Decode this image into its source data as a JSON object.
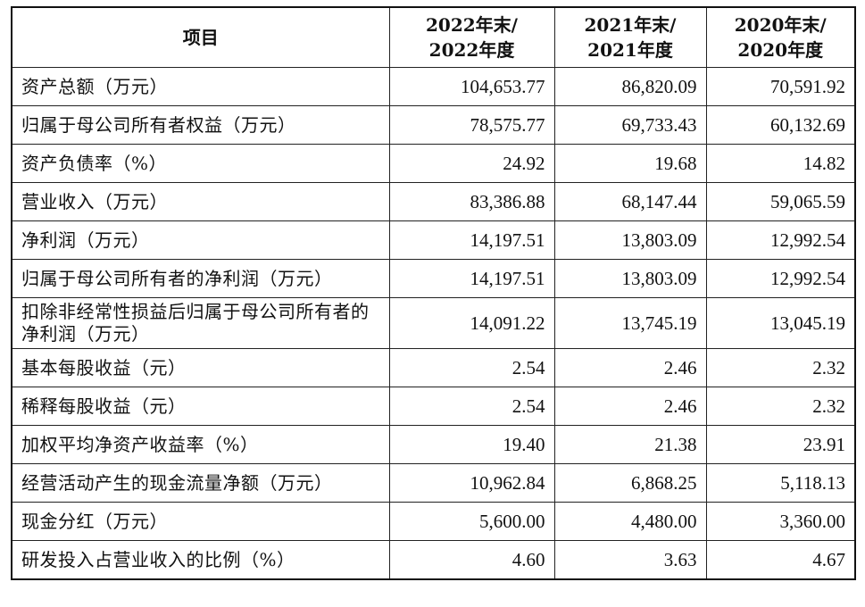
{
  "header": {
    "item": "项目",
    "col2022_line1": "2022年末/",
    "col2022_line2": "2022年度",
    "col2021_line1": "2021年末/",
    "col2021_line2": "2021年度",
    "col2020_line1": "2020年末/",
    "col2020_line2": "2020年度"
  },
  "rows": [
    {
      "label": "资产总额（万元）",
      "v2022": "104,653.77",
      "v2021": "86,820.09",
      "v2020": "70,591.92"
    },
    {
      "label": "归属于母公司所有者权益（万元）",
      "v2022": "78,575.77",
      "v2021": "69,733.43",
      "v2020": "60,132.69"
    },
    {
      "label": "资产负债率（%）",
      "v2022": "24.92",
      "v2021": "19.68",
      "v2020": "14.82"
    },
    {
      "label": "营业收入（万元）",
      "v2022": "83,386.88",
      "v2021": "68,147.44",
      "v2020": "59,065.59"
    },
    {
      "label": "净利润（万元）",
      "v2022": "14,197.51",
      "v2021": "13,803.09",
      "v2020": "12,992.54"
    },
    {
      "label": "归属于母公司所有者的净利润（万元）",
      "v2022": "14,197.51",
      "v2021": "13,803.09",
      "v2020": "12,992.54"
    },
    {
      "label": "扣除非经常性损益后归属于母公司所有者的净利润（万元）",
      "v2022": "14,091.22",
      "v2021": "13,745.19",
      "v2020": "13,045.19"
    },
    {
      "label": "基本每股收益（元）",
      "v2022": "2.54",
      "v2021": "2.46",
      "v2020": "2.32"
    },
    {
      "label": "稀释每股收益（元）",
      "v2022": "2.54",
      "v2021": "2.46",
      "v2020": "2.32"
    },
    {
      "label": "加权平均净资产收益率（%）",
      "v2022": "19.40",
      "v2021": "21.38",
      "v2020": "23.91"
    },
    {
      "label": "经营活动产生的现金流量净额（万元）",
      "v2022": "10,962.84",
      "v2021": "6,868.25",
      "v2020": "5,118.13"
    },
    {
      "label": "现金分红（万元）",
      "v2022": "5,600.00",
      "v2021": "4,480.00",
      "v2020": "3,360.00"
    },
    {
      "label": "研发投入占营业收入的比例（%）",
      "v2022": "4.60",
      "v2021": "3.63",
      "v2020": "4.67"
    }
  ]
}
